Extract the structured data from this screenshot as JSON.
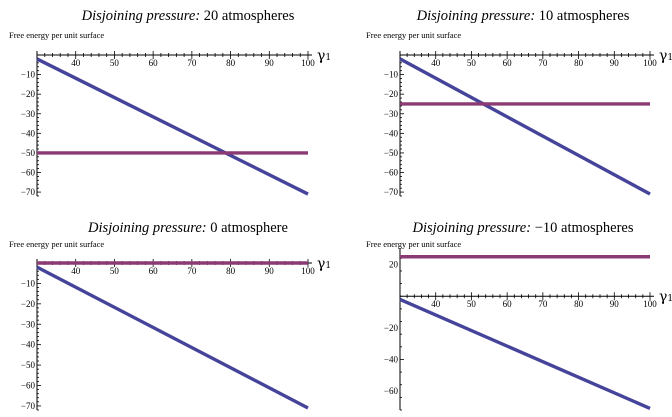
{
  "chart_data": [
    {
      "type": "line",
      "title_prefix": "Disjoining pressure:",
      "title_suffix": "20 atmospheres",
      "ylabel": "Free energy per unit surface",
      "xlabel": "γ",
      "xlabel_sub": "1",
      "xlim": [
        30,
        100
      ],
      "ylim": [
        -72,
        0
      ],
      "xticks": [
        40,
        50,
        60,
        70,
        80,
        90,
        100
      ],
      "yticks": [
        -10,
        -20,
        -30,
        -40,
        -50,
        -60,
        -70
      ],
      "series": [
        {
          "x": [
            30,
            100
          ],
          "y": [
            -2,
            -71
          ],
          "color": "#46449a"
        },
        {
          "x": [
            30,
            100
          ],
          "y": [
            -50,
            -50
          ],
          "color": "#8b3a74"
        }
      ]
    },
    {
      "type": "line",
      "title_prefix": "Disjoining pressure:",
      "title_suffix": "10 atmospheres",
      "ylabel": "Free energy per unit surface",
      "xlabel": "γ",
      "xlabel_sub": "1",
      "xlim": [
        30,
        100
      ],
      "ylim": [
        -72,
        0
      ],
      "xticks": [
        40,
        50,
        60,
        70,
        80,
        90,
        100
      ],
      "yticks": [
        -10,
        -20,
        -30,
        -40,
        -50,
        -60,
        -70
      ],
      "series": [
        {
          "x": [
            30,
            100
          ],
          "y": [
            -2,
            -71
          ],
          "color": "#46449a"
        },
        {
          "x": [
            30,
            100
          ],
          "y": [
            -25,
            -25
          ],
          "color": "#8b3a74"
        }
      ]
    },
    {
      "type": "line",
      "title_prefix": "Disjoining pressure:",
      "title_suffix": "0 atmosphere",
      "ylabel": "Free energy per unit surface",
      "xlabel": "γ",
      "xlabel_sub": "1",
      "xlim": [
        30,
        100
      ],
      "ylim": [
        -72,
        0
      ],
      "xticks": [
        40,
        50,
        60,
        70,
        80,
        90,
        100
      ],
      "yticks": [
        -10,
        -20,
        -30,
        -40,
        -50,
        -60,
        -70
      ],
      "series": [
        {
          "x": [
            30,
            100
          ],
          "y": [
            -2,
            -71
          ],
          "color": "#46449a"
        },
        {
          "x": [
            30,
            100
          ],
          "y": [
            0,
            0
          ],
          "color": "#8b3a74"
        }
      ]
    },
    {
      "type": "line",
      "title_prefix": "Disjoining pressure:",
      "title_suffix": "−10 atmospheres",
      "ylabel": "Free energy per unit surface",
      "xlabel": "γ",
      "xlabel_sub": "1",
      "xlim": [
        30,
        100
      ],
      "ylim": [
        -72,
        28
      ],
      "xticks": [
        40,
        50,
        60,
        70,
        80,
        90,
        100
      ],
      "yticks": [
        20,
        -20,
        -40,
        -60
      ],
      "series": [
        {
          "x": [
            30,
            100
          ],
          "y": [
            -2,
            -71
          ],
          "color": "#46449a"
        },
        {
          "x": [
            30,
            100
          ],
          "y": [
            25,
            25
          ],
          "color": "#8b3a74"
        }
      ]
    }
  ]
}
